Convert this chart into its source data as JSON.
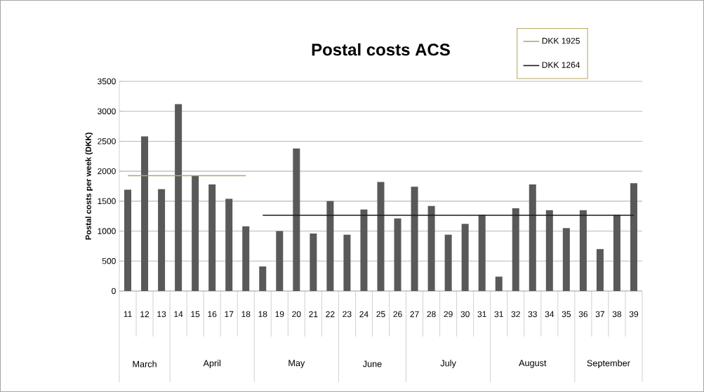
{
  "chart_data": {
    "type": "bar",
    "title": "Postal costs ACS",
    "ylabel": "Postal costs per week (DKK)",
    "categories": [
      "11",
      "12",
      "13",
      "14",
      "15",
      "16",
      "17",
      "18",
      "18",
      "19",
      "20",
      "21",
      "22",
      "23",
      "24",
      "25",
      "26",
      "27",
      "28",
      "29",
      "30",
      "31",
      "31",
      "32",
      "33",
      "34",
      "35",
      "36",
      "37",
      "38",
      "39"
    ],
    "series": [
      {
        "color": "#595959",
        "values": [
          1690,
          2580,
          1700,
          3120,
          1930,
          1780,
          1540,
          1080,
          410,
          1000,
          2380,
          960,
          1500,
          940,
          1360,
          1820,
          1210,
          1740,
          1420,
          940,
          1120,
          1270,
          240,
          1380,
          1780,
          1350,
          1050,
          1350,
          700,
          1270,
          1800
        ]
      },
      {
        "type": "line",
        "name": "DKK 1925",
        "color": "#b5a862",
        "values": [
          1925,
          1925,
          1925,
          1925,
          1925,
          1925,
          1925,
          1925,
          null,
          null,
          null,
          null,
          null,
          null,
          null,
          null,
          null,
          null,
          null,
          null,
          null,
          null,
          null,
          null,
          null,
          null,
          null,
          null,
          null,
          null,
          null
        ]
      },
      {
        "type": "line",
        "name": "DKK 1264",
        "color": "#1a1a1a",
        "values": [
          null,
          null,
          null,
          null,
          null,
          null,
          null,
          null,
          1264,
          1264,
          1264,
          1264,
          1264,
          1264,
          1264,
          1264,
          1264,
          1264,
          1264,
          1264,
          1264,
          1264,
          1264,
          1264,
          1264,
          1264,
          1264,
          1264,
          1264,
          1264,
          1264
        ]
      }
    ],
    "ylim": [
      0,
      3500
    ],
    "yticks": [
      0,
      500,
      1000,
      1500,
      2000,
      2500,
      3000,
      3500
    ],
    "grid": "y",
    "legend": "top right",
    "annotations": [
      "March",
      "April",
      "May",
      "June",
      "July",
      "August",
      "September"
    ]
  }
}
